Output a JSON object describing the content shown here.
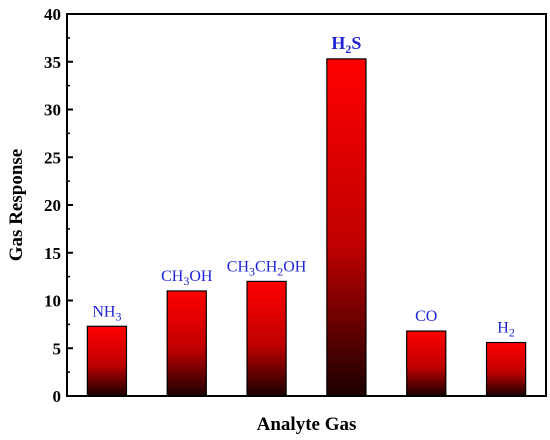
{
  "chart_data": {
    "type": "bar",
    "xlabel": "Analyte Gas",
    "ylabel": "Gas Response",
    "ylim": [
      0,
      40
    ],
    "yticks": [
      0,
      5,
      10,
      15,
      20,
      25,
      30,
      35,
      40
    ],
    "categories": [
      {
        "base": "NH",
        "sub": "3",
        "tail": ""
      },
      {
        "base": "CH",
        "sub": "3",
        "tail": "OH"
      },
      {
        "base": "CH",
        "sub": "3",
        "tail": "CH",
        "sub2": "2",
        "tail2": "OH"
      },
      {
        "base": "H",
        "sub": "2",
        "tail": "S"
      },
      {
        "base": "CO",
        "sub": "",
        "tail": ""
      },
      {
        "base": "H",
        "sub": "2",
        "tail": ""
      }
    ],
    "values": [
      7.3,
      11.0,
      12.0,
      35.3,
      6.8,
      5.6
    ],
    "colors": {
      "bar_top": "#ff0000",
      "bar_bottom": "#1a0000",
      "label": "#1e24d6",
      "axis": "#000000"
    },
    "grid": false
  }
}
